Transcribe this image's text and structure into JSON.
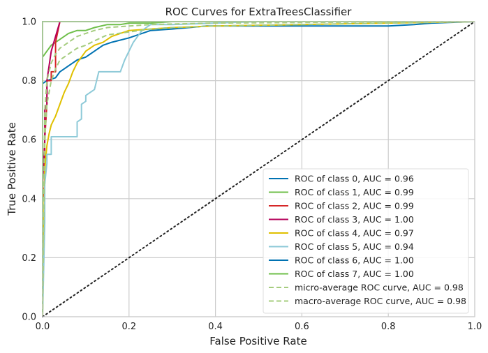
{
  "chart_data": {
    "type": "line",
    "title": "ROC Curves for ExtraTreesClassifier",
    "xlabel": "False Positive Rate",
    "ylabel": "True Positive Rate",
    "xlim": [
      0,
      1
    ],
    "ylim": [
      0,
      1
    ],
    "xticks": [
      0,
      0.2,
      0.4,
      0.6,
      0.8,
      1
    ],
    "yticks": [
      0,
      0.2,
      0.4,
      0.6,
      0.8,
      1
    ],
    "xtick_labels": [
      "0.0",
      "0.2",
      "0.4",
      "0.6",
      "0.8",
      "1.0"
    ],
    "ytick_labels": [
      "0.0",
      "0.2",
      "0.4",
      "0.6",
      "0.8",
      "1.0"
    ],
    "grid": true,
    "legend_position": "lower-right",
    "series": [
      {
        "name": "ROC of class 0, AUC = 0.96",
        "color": "#0072b2",
        "dash": false,
        "x": [
          0,
          0,
          0.01,
          0.03,
          0.04,
          0.05,
          0.06,
          0.07,
          0.08,
          0.1,
          0.12,
          0.14,
          0.16,
          0.2,
          0.23,
          0.25,
          0.3,
          0.38,
          0.5,
          0.6,
          0.8,
          0.86,
          0.9,
          1.0
        ],
        "y": [
          0,
          0.79,
          0.8,
          0.81,
          0.83,
          0.84,
          0.85,
          0.86,
          0.87,
          0.88,
          0.9,
          0.92,
          0.93,
          0.945,
          0.96,
          0.97,
          0.975,
          0.985,
          0.985,
          0.985,
          0.985,
          0.99,
          0.995,
          1.0
        ]
      },
      {
        "name": "ROC of class 1, AUC = 0.99",
        "color": "#6fbf4a",
        "dash": false,
        "x": [
          0,
          0,
          0.01,
          0.02,
          0.04,
          0.06,
          0.08,
          0.1,
          0.12,
          0.15,
          0.18,
          0.2,
          0.25,
          0.3,
          0.5,
          0.8,
          1.0
        ],
        "y": [
          0,
          0.88,
          0.9,
          0.92,
          0.94,
          0.96,
          0.97,
          0.97,
          0.98,
          0.99,
          0.99,
          0.995,
          0.995,
          1.0,
          1.0,
          1.0,
          1.0
        ]
      },
      {
        "name": "ROC of class 2, AUC = 0.99",
        "color": "#d62728",
        "dash": false,
        "x": [
          0,
          0,
          0.005,
          0.005,
          0.01,
          0.01,
          0.02,
          0.02,
          0.03,
          0.03,
          0.04,
          0.05,
          0.2,
          1.0
        ],
        "y": [
          0,
          0.4,
          0.45,
          0.6,
          0.72,
          0.8,
          0.8,
          0.83,
          0.83,
          0.93,
          1.0,
          1.0,
          1.0,
          1.0
        ]
      },
      {
        "name": "ROC of class 3, AUC = 1.00",
        "color": "#b5005a",
        "dash": false,
        "x": [
          0,
          0,
          0.005,
          0.005,
          0.01,
          0.01,
          0.02,
          0.04,
          0.2,
          1.0
        ],
        "y": [
          0,
          0.45,
          0.6,
          0.7,
          0.72,
          0.8,
          0.9,
          1.0,
          1.0,
          1.0
        ]
      },
      {
        "name": "ROC of class 4, AUC = 0.97",
        "color": "#e0c000",
        "dash": false,
        "x": [
          0,
          0.005,
          0.01,
          0.015,
          0.02,
          0.03,
          0.04,
          0.05,
          0.06,
          0.07,
          0.08,
          0.09,
          0.1,
          0.12,
          0.14,
          0.16,
          0.18,
          0.2,
          0.25,
          0.3,
          0.4,
          0.6,
          0.8,
          1.0
        ],
        "y": [
          0,
          0.5,
          0.58,
          0.62,
          0.65,
          0.68,
          0.72,
          0.76,
          0.79,
          0.83,
          0.86,
          0.88,
          0.9,
          0.92,
          0.93,
          0.95,
          0.96,
          0.97,
          0.975,
          0.98,
          0.985,
          0.99,
          0.995,
          1.0
        ]
      },
      {
        "name": "ROC of class 5, AUC = 0.94",
        "color": "#8ecad8",
        "dash": false,
        "x": [
          0,
          0.005,
          0.005,
          0.01,
          0.01,
          0.015,
          0.02,
          0.02,
          0.03,
          0.03,
          0.05,
          0.08,
          0.08,
          0.09,
          0.09,
          0.1,
          0.1,
          0.12,
          0.13,
          0.18,
          0.19,
          0.21,
          0.23,
          0.25,
          0.3,
          0.5,
          0.8,
          1.0
        ],
        "y": [
          0,
          0.32,
          0.45,
          0.52,
          0.55,
          0.55,
          0.55,
          0.61,
          0.61,
          0.61,
          0.61,
          0.61,
          0.66,
          0.67,
          0.72,
          0.73,
          0.75,
          0.77,
          0.83,
          0.83,
          0.87,
          0.93,
          0.97,
          0.99,
          0.99,
          1.0,
          1.0,
          1.0
        ]
      },
      {
        "name": "ROC of class 6, AUC = 1.00",
        "color": "#0072b2",
        "dash": false,
        "x": [
          0,
          0,
          1.0
        ],
        "y": [
          0,
          1.0,
          1.0
        ]
      },
      {
        "name": "ROC of class 7, AUC = 1.00",
        "color": "#6fbf4a",
        "dash": false,
        "x": [
          0,
          0,
          1.0
        ],
        "y": [
          0,
          1.0,
          1.0
        ]
      },
      {
        "name": "micro-average ROC curve, AUC = 0.98",
        "color": "#a5cc7e",
        "dash": true,
        "x": [
          0,
          0.005,
          0.01,
          0.02,
          0.03,
          0.04,
          0.06,
          0.08,
          0.1,
          0.12,
          0.15,
          0.2,
          0.25,
          0.3,
          0.4,
          0.6,
          0.8,
          1.0
        ],
        "y": [
          0,
          0.6,
          0.72,
          0.8,
          0.84,
          0.87,
          0.89,
          0.91,
          0.92,
          0.935,
          0.955,
          0.965,
          0.975,
          0.98,
          0.985,
          0.99,
          0.995,
          1.0
        ]
      },
      {
        "name": "macro-average ROC curve, AUC = 0.98",
        "color": "#a5cc7e",
        "dash": true,
        "x": [
          0,
          0.005,
          0.01,
          0.02,
          0.03,
          0.04,
          0.06,
          0.08,
          0.1,
          0.12,
          0.15,
          0.2,
          0.25,
          0.3,
          0.4,
          0.6,
          0.8,
          1.0
        ],
        "y": [
          0,
          0.7,
          0.8,
          0.86,
          0.89,
          0.91,
          0.93,
          0.95,
          0.96,
          0.97,
          0.98,
          0.985,
          0.99,
          0.992,
          0.995,
          0.997,
          0.999,
          1.0
        ]
      }
    ],
    "reference_line": {
      "x": [
        0,
        1
      ],
      "y": [
        0,
        1
      ],
      "color": "#222222",
      "style": "dotted"
    }
  }
}
